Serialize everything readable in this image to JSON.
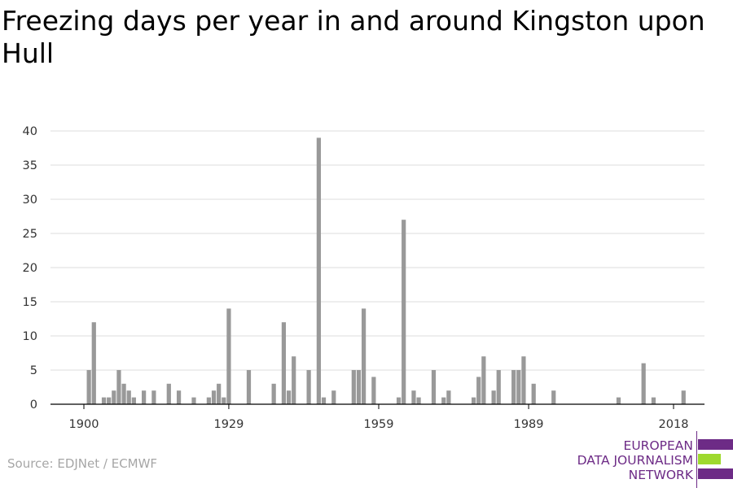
{
  "title": "Freezing days per year in and around Kingston upon Hull",
  "source": "Source: EDJNet / ECMWF",
  "logo": {
    "lines": [
      "EUROPEAN",
      "DATA JOURNALISM",
      "NETWORK"
    ],
    "colors": {
      "purple": "#6d2b86",
      "green": "#9ed92e"
    }
  },
  "colors": {
    "bar": "#999999",
    "grid": "#dddddd",
    "axis": "#000000",
    "text": "#333333"
  },
  "chart_data": {
    "type": "bar",
    "title": "Freezing days per year in and around Kingston upon Hull",
    "xlabel": "",
    "ylabel": "",
    "xlim": [
      1900,
      2018
    ],
    "ylim": [
      0,
      40
    ],
    "x_ticks": [
      1900,
      1929,
      1959,
      1989,
      2018
    ],
    "y_ticks": [
      0,
      5,
      10,
      15,
      20,
      25,
      30,
      35,
      40
    ],
    "grid": true,
    "legend": "none",
    "x": [
      1901,
      1902,
      1904,
      1905,
      1906,
      1907,
      1908,
      1909,
      1910,
      1912,
      1914,
      1917,
      1919,
      1922,
      1925,
      1926,
      1927,
      1928,
      1929,
      1933,
      1938,
      1940,
      1941,
      1942,
      1945,
      1947,
      1948,
      1950,
      1954,
      1955,
      1956,
      1958,
      1963,
      1964,
      1966,
      1967,
      1970,
      1972,
      1973,
      1978,
      1979,
      1980,
      1982,
      1983,
      1986,
      1987,
      1988,
      1990,
      1994,
      2007,
      2012,
      2014,
      2020
    ],
    "values": [
      5,
      12,
      1,
      1,
      2,
      5,
      3,
      2,
      1,
      2,
      2,
      3,
      2,
      1,
      1,
      2,
      3,
      1,
      14,
      5,
      3,
      12,
      2,
      7,
      5,
      39,
      1,
      2,
      5,
      5,
      14,
      4,
      1,
      27,
      2,
      1,
      5,
      1,
      2,
      1,
      4,
      7,
      2,
      5,
      5,
      5,
      7,
      3,
      2,
      1,
      6,
      1,
      2
    ]
  }
}
